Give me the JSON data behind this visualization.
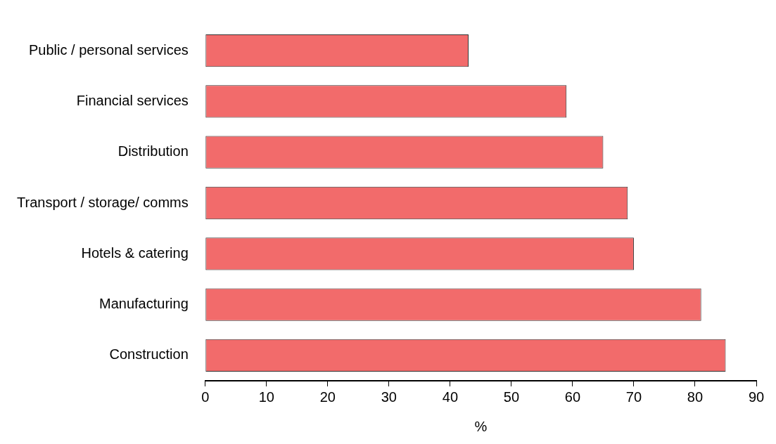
{
  "chart_data": {
    "type": "bar",
    "orientation": "horizontal",
    "xlabel": "%",
    "categories": [
      "Public / personal services",
      "Financial services",
      "Distribution",
      "Transport / storage/ comms",
      "Hotels & catering",
      "Manufacturing",
      "Construction"
    ],
    "values": [
      43,
      59,
      65,
      69,
      70,
      81,
      85
    ],
    "color": "#f26b6b",
    "xlim": [
      0,
      90
    ],
    "xticks": [
      0,
      10,
      20,
      30,
      40,
      50,
      60,
      70,
      80,
      90
    ],
    "grid": false,
    "legend": false
  }
}
